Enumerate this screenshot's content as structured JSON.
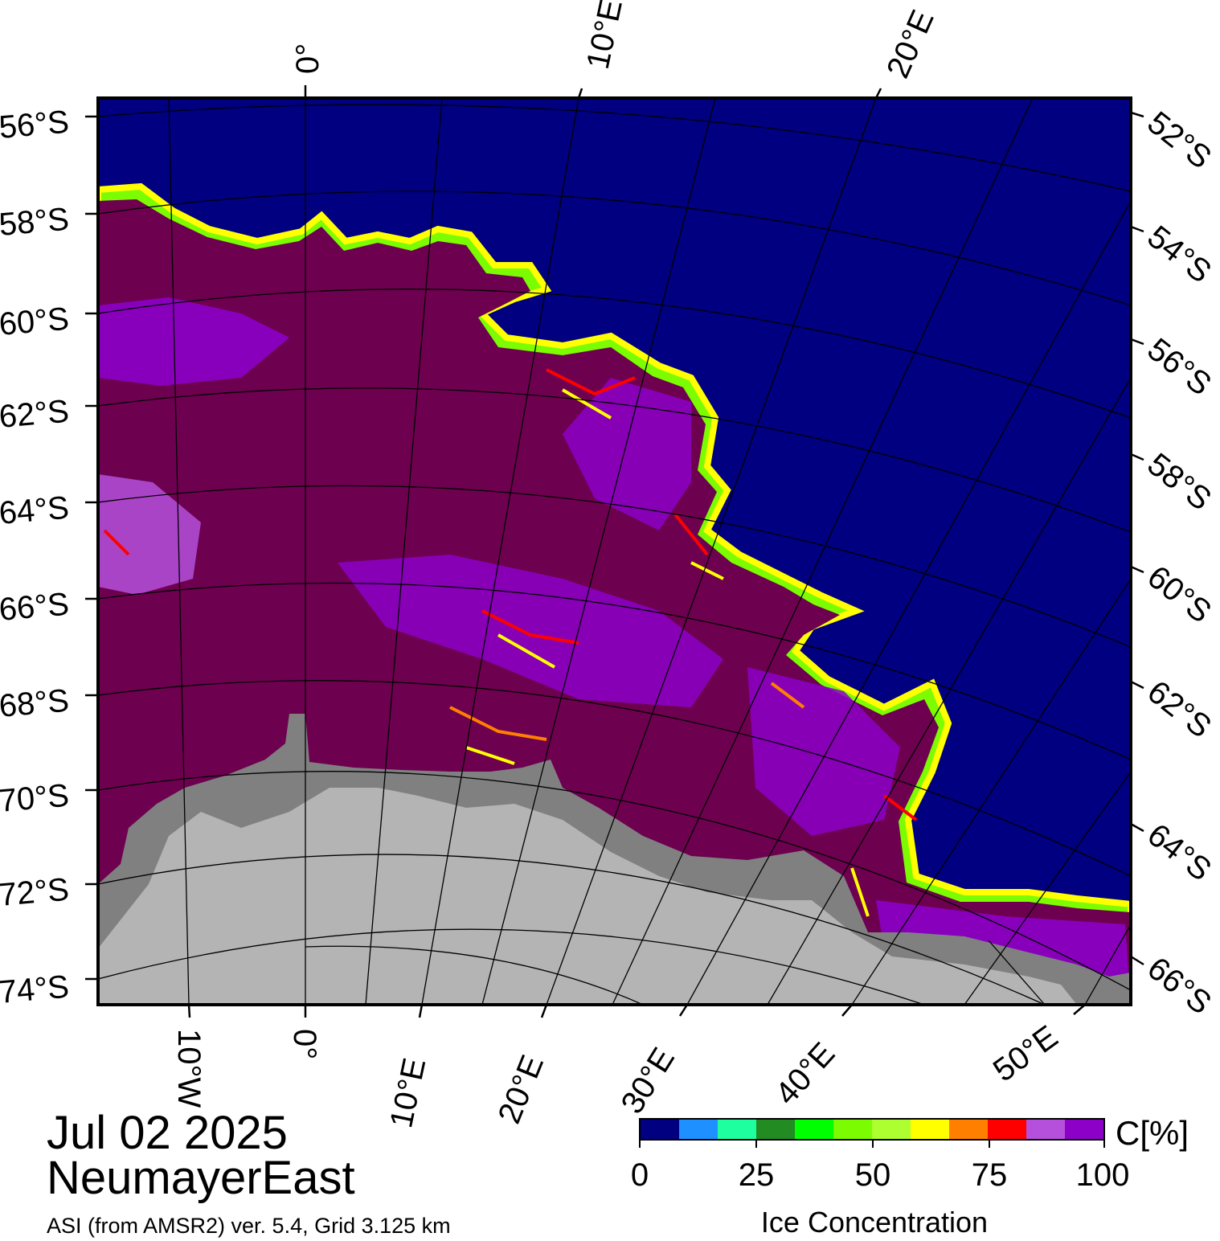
{
  "map": {
    "top_longitude_labels": [
      "0°",
      "10°E",
      "20°E"
    ],
    "bottom_longitude_labels": [
      "10°W",
      "0°",
      "10°E",
      "20°E",
      "30°E",
      "40°E",
      "50°E"
    ],
    "left_latitude_labels": [
      "56°S",
      "58°S",
      "60°S",
      "62°S",
      "64°S",
      "66°S",
      "68°S",
      "70°S",
      "72°S",
      "74°S"
    ],
    "right_latitude_labels": [
      "52°S",
      "54°S",
      "56°S",
      "58°S",
      "60°S",
      "62°S",
      "64°S",
      "66°S"
    ],
    "colors": {
      "open_water": "#000080",
      "ice_full": "#6e0050",
      "ice_high": "#8c00c8",
      "ice_mid": "#b450dc",
      "land_ice_shelf": "#808080",
      "land": "#b4b4b4"
    }
  },
  "info": {
    "date": "Jul 02 2025",
    "region": "NeumayerEast",
    "source": "ASI (from AMSR2) ver. 5.4,  Grid 3.125 km"
  },
  "colorbar": {
    "unit": "C[%]",
    "title": "Ice Concentration",
    "tick_labels": [
      "0",
      "25",
      "50",
      "75",
      "100"
    ],
    "colors": [
      "#000080",
      "#1e90ff",
      "#1effa0",
      "#228b22",
      "#00ff00",
      "#7cfc00",
      "#adff2f",
      "#ffff00",
      "#ff8000",
      "#ff0000",
      "#b450dc",
      "#8c00c8"
    ]
  }
}
